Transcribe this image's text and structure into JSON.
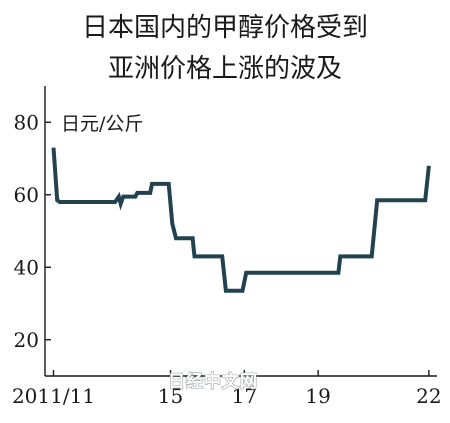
{
  "chart_data": {
    "type": "line",
    "title_lines": [
      "日本国内的甲醇价格受到",
      "亚洲价格上涨的波及"
    ],
    "unit": "日元/公斤",
    "ylim": [
      10,
      90
    ],
    "y_ticks": [
      20,
      40,
      60,
      80
    ],
    "x_ticks": [
      {
        "label": "2011/11",
        "t": 2011.83
      },
      {
        "label": "15",
        "t": 2015.0
      },
      {
        "label": "17",
        "t": 2017.0
      },
      {
        "label": "19",
        "t": 2019.0
      },
      {
        "label": "22",
        "t": 2022.0
      }
    ],
    "grid": false,
    "line_color": "#22424f",
    "series": [
      {
        "points": [
          [
            2011.83,
            73
          ],
          [
            2011.93,
            58.5
          ],
          [
            2012.0,
            58
          ],
          [
            2013.5,
            58
          ],
          [
            2013.6,
            59.5
          ],
          [
            2013.65,
            57.5
          ],
          [
            2013.72,
            59.5
          ],
          [
            2014.05,
            59.5
          ],
          [
            2014.1,
            60.5
          ],
          [
            2014.45,
            60.5
          ],
          [
            2014.5,
            63
          ],
          [
            2014.95,
            63
          ],
          [
            2015.05,
            52
          ],
          [
            2015.15,
            48
          ],
          [
            2015.6,
            48
          ],
          [
            2015.65,
            43
          ],
          [
            2016.4,
            43
          ],
          [
            2016.5,
            33.5
          ],
          [
            2016.95,
            33.5
          ],
          [
            2017.05,
            38.5
          ],
          [
            2019.55,
            38.5
          ],
          [
            2019.6,
            43
          ],
          [
            2020.45,
            43
          ],
          [
            2020.6,
            58.5
          ],
          [
            2021.9,
            58.5
          ],
          [
            2022.0,
            68
          ]
        ]
      }
    ]
  },
  "watermark": "日经中文网"
}
